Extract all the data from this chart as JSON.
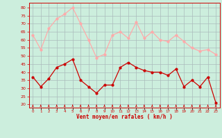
{
  "x": [
    0,
    1,
    2,
    3,
    4,
    5,
    6,
    7,
    8,
    9,
    10,
    11,
    12,
    13,
    14,
    15,
    16,
    17,
    18,
    19,
    20,
    21,
    22,
    23
  ],
  "avg_wind": [
    37,
    31,
    36,
    43,
    45,
    48,
    35,
    31,
    27,
    32,
    32,
    43,
    46,
    43,
    41,
    40,
    40,
    38,
    42,
    31,
    35,
    31,
    37,
    21
  ],
  "gust_wind": [
    63,
    54,
    67,
    73,
    76,
    80,
    70,
    60,
    49,
    51,
    63,
    65,
    61,
    71,
    61,
    65,
    60,
    59,
    63,
    59,
    55,
    53,
    54,
    51
  ],
  "avg_color": "#cc0000",
  "gust_color": "#ffaaaa",
  "bg_color": "#cceedd",
  "grid_color": "#aabbbb",
  "xlabel": "Vent moyen/en rafales ( km/h )",
  "ylabel_ticks": [
    20,
    25,
    30,
    35,
    40,
    45,
    50,
    55,
    60,
    65,
    70,
    75,
    80
  ],
  "ylim": [
    18,
    83
  ],
  "xlim": [
    -0.5,
    23.5
  ]
}
